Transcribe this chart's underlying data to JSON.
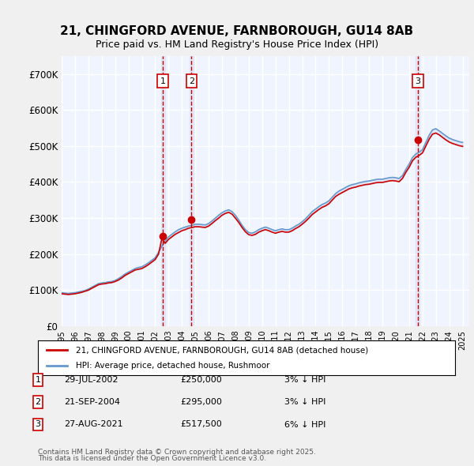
{
  "title": "21, CHINGFORD AVENUE, FARNBOROUGH, GU14 8AB",
  "subtitle": "Price paid vs. HM Land Registry's House Price Index (HPI)",
  "legend_line1": "21, CHINGFORD AVENUE, FARNBOROUGH, GU14 8AB (detached house)",
  "legend_line2": "HPI: Average price, detached house, Rushmoor",
  "ylabel_ticks": [
    "£0",
    "£100K",
    "£200K",
    "£300K",
    "£400K",
    "£500K",
    "£600K",
    "£700K"
  ],
  "ytick_values": [
    0,
    100000,
    200000,
    300000,
    400000,
    500000,
    600000,
    700000
  ],
  "ylim": [
    0,
    750000
  ],
  "xlim_start": 1995.0,
  "xlim_end": 2025.5,
  "background_color": "#f0f4ff",
  "plot_bg": "#f0f4ff",
  "grid_color": "#ffffff",
  "transactions": [
    {
      "num": 1,
      "date": "29-JUL-2002",
      "price": 250000,
      "year": 2002.57,
      "label": "29-JUL-2002",
      "amount": "£250,000",
      "pct": "3% ↓ HPI"
    },
    {
      "num": 2,
      "date": "21-SEP-2004",
      "price": 295000,
      "year": 2004.72,
      "label": "21-SEP-2004",
      "amount": "£295,000",
      "pct": "3% ↓ HPI"
    },
    {
      "num": 3,
      "date": "27-AUG-2021",
      "price": 517500,
      "year": 2021.65,
      "label": "27-AUG-2021",
      "amount": "£517,500",
      "pct": "6% ↓ HPI"
    }
  ],
  "hpi_data": {
    "years": [
      1995.0,
      1995.25,
      1995.5,
      1995.75,
      1996.0,
      1996.25,
      1996.5,
      1996.75,
      1997.0,
      1997.25,
      1997.5,
      1997.75,
      1998.0,
      1998.25,
      1998.5,
      1998.75,
      1999.0,
      1999.25,
      1999.5,
      1999.75,
      2000.0,
      2000.25,
      2000.5,
      2000.75,
      2001.0,
      2001.25,
      2001.5,
      2001.75,
      2002.0,
      2002.25,
      2002.5,
      2002.75,
      2003.0,
      2003.25,
      2003.5,
      2003.75,
      2004.0,
      2004.25,
      2004.5,
      2004.75,
      2005.0,
      2005.25,
      2005.5,
      2005.75,
      2006.0,
      2006.25,
      2006.5,
      2006.75,
      2007.0,
      2007.25,
      2007.5,
      2007.75,
      2008.0,
      2008.25,
      2008.5,
      2008.75,
      2009.0,
      2009.25,
      2009.5,
      2009.75,
      2010.0,
      2010.25,
      2010.5,
      2010.75,
      2011.0,
      2011.25,
      2011.5,
      2011.75,
      2012.0,
      2012.25,
      2012.5,
      2012.75,
      2013.0,
      2013.25,
      2013.5,
      2013.75,
      2014.0,
      2014.25,
      2014.5,
      2014.75,
      2015.0,
      2015.25,
      2015.5,
      2015.75,
      2016.0,
      2016.25,
      2016.5,
      2016.75,
      2017.0,
      2017.25,
      2017.5,
      2017.75,
      2018.0,
      2018.25,
      2018.5,
      2018.75,
      2019.0,
      2019.25,
      2019.5,
      2019.75,
      2020.0,
      2020.25,
      2020.5,
      2020.75,
      2021.0,
      2021.25,
      2021.5,
      2021.75,
      2022.0,
      2022.25,
      2022.5,
      2022.75,
      2023.0,
      2023.25,
      2023.5,
      2023.75,
      2024.0,
      2024.25,
      2024.5,
      2024.75,
      2025.0
    ],
    "values": [
      93000,
      92000,
      91000,
      92000,
      93000,
      95000,
      97000,
      99000,
      103000,
      108000,
      113000,
      118000,
      120000,
      121000,
      123000,
      124000,
      127000,
      132000,
      138000,
      145000,
      150000,
      155000,
      160000,
      163000,
      165000,
      170000,
      176000,
      183000,
      190000,
      205000,
      222000,
      237000,
      248000,
      255000,
      262000,
      268000,
      272000,
      275000,
      278000,
      280000,
      283000,
      283000,
      282000,
      281000,
      285000,
      292000,
      300000,
      308000,
      315000,
      320000,
      323000,
      318000,
      308000,
      295000,
      280000,
      268000,
      260000,
      258000,
      262000,
      268000,
      272000,
      275000,
      272000,
      268000,
      265000,
      268000,
      270000,
      268000,
      268000,
      272000,
      278000,
      283000,
      290000,
      298000,
      308000,
      318000,
      325000,
      332000,
      338000,
      342000,
      348000,
      358000,
      368000,
      375000,
      380000,
      385000,
      390000,
      393000,
      395000,
      398000,
      400000,
      402000,
      403000,
      405000,
      407000,
      408000,
      408000,
      410000,
      412000,
      413000,
      412000,
      410000,
      418000,
      435000,
      450000,
      468000,
      478000,
      483000,
      490000,
      510000,
      530000,
      545000,
      548000,
      542000,
      535000,
      528000,
      522000,
      518000,
      515000,
      512000,
      510000
    ]
  },
  "price_paid_data": {
    "years": [
      1995.0,
      1995.25,
      1995.5,
      1995.75,
      1996.0,
      1996.25,
      1996.5,
      1996.75,
      1997.0,
      1997.25,
      1997.5,
      1997.75,
      1998.0,
      1998.25,
      1998.5,
      1998.75,
      1999.0,
      1999.25,
      1999.5,
      1999.75,
      2000.0,
      2000.25,
      2000.5,
      2000.75,
      2001.0,
      2001.25,
      2001.5,
      2001.75,
      2002.0,
      2002.25,
      2002.5,
      2002.75,
      2003.0,
      2003.25,
      2003.5,
      2003.75,
      2004.0,
      2004.25,
      2004.5,
      2004.75,
      2005.0,
      2005.25,
      2005.5,
      2005.75,
      2006.0,
      2006.25,
      2006.5,
      2006.75,
      2007.0,
      2007.25,
      2007.5,
      2007.75,
      2008.0,
      2008.25,
      2008.5,
      2008.75,
      2009.0,
      2009.25,
      2009.5,
      2009.75,
      2010.0,
      2010.25,
      2010.5,
      2010.75,
      2011.0,
      2011.25,
      2011.5,
      2011.75,
      2012.0,
      2012.25,
      2012.5,
      2012.75,
      2013.0,
      2013.25,
      2013.5,
      2013.75,
      2014.0,
      2014.25,
      2014.5,
      2014.75,
      2015.0,
      2015.25,
      2015.5,
      2015.75,
      2016.0,
      2016.25,
      2016.5,
      2016.75,
      2017.0,
      2017.25,
      2017.5,
      2017.75,
      2018.0,
      2018.25,
      2018.5,
      2018.75,
      2019.0,
      2019.25,
      2019.5,
      2019.75,
      2020.0,
      2020.25,
      2020.5,
      2020.75,
      2021.0,
      2021.25,
      2021.5,
      2021.75,
      2022.0,
      2022.25,
      2022.5,
      2022.75,
      2023.0,
      2023.25,
      2023.5,
      2023.75,
      2024.0,
      2024.25,
      2024.5,
      2024.75,
      2025.0
    ],
    "values": [
      90000,
      89000,
      88000,
      89000,
      90000,
      92000,
      94000,
      97000,
      100000,
      105000,
      110000,
      115000,
      117000,
      118000,
      120000,
      121000,
      124000,
      128000,
      134000,
      141000,
      146000,
      151000,
      156000,
      158000,
      160000,
      165000,
      171000,
      178000,
      185000,
      200000,
      243000,
      230000,
      241000,
      248000,
      255000,
      260000,
      265000,
      268000,
      272000,
      274000,
      276000,
      276000,
      275000,
      274000,
      278000,
      285000,
      293000,
      300000,
      308000,
      313000,
      316000,
      311000,
      300000,
      288000,
      274000,
      262000,
      254000,
      252000,
      255000,
      261000,
      265000,
      268000,
      265000,
      261000,
      258000,
      261000,
      263000,
      261000,
      261000,
      265000,
      271000,
      276000,
      283000,
      291000,
      300000,
      310000,
      317000,
      324000,
      330000,
      334000,
      340000,
      350000,
      360000,
      366000,
      371000,
      376000,
      381000,
      384000,
      386000,
      389000,
      391000,
      393000,
      394000,
      396000,
      398000,
      399000,
      399000,
      401000,
      403000,
      404000,
      403000,
      401000,
      410000,
      427000,
      441000,
      459000,
      469000,
      474000,
      481000,
      500000,
      519000,
      533000,
      536000,
      531000,
      524000,
      517000,
      511000,
      507000,
      504000,
      501000,
      499000
    ]
  },
  "footer_text": "Contains HM Land Registry data © Crown copyright and database right 2025.\nThis data is licensed under the Open Government Licence v3.0.",
  "line_color_red": "#cc0000",
  "line_color_blue": "#6699cc",
  "dashed_color": "#cc0000",
  "shade_color": "#aabbdd",
  "marker_color_red": "#cc0000",
  "box_color": "#cc0000"
}
